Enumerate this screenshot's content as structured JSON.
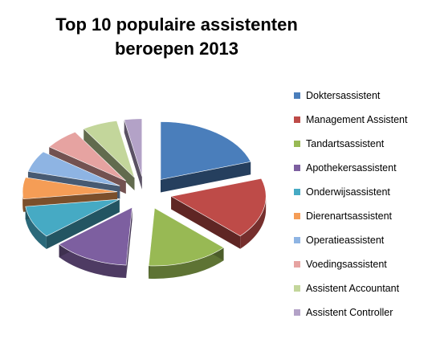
{
  "chart_data": {
    "type": "pie",
    "title_lines": [
      "Top 10 populaire assistenten",
      "beroepen 2013"
    ],
    "legend_position": "right",
    "categories": [
      "Doktersassistent",
      "Management Assistent",
      "Tandartsassistent",
      "Apothekersassistent",
      "Onderwijsassistent",
      "Dierenartsassistent",
      "Operatieassistent",
      "Voedingsassistent",
      "Assistent Accountant",
      "Assistent Controller"
    ],
    "values": [
      20,
      17,
      14,
      13,
      9,
      6,
      6,
      6,
      6,
      3
    ],
    "colors": [
      "#4a7ebb",
      "#be4b48",
      "#98b954",
      "#7d5fa0",
      "#46aac4",
      "#f59d56",
      "#8eb4e3",
      "#e6a3a1",
      "#c3d69b",
      "#b3a2c7"
    ]
  }
}
